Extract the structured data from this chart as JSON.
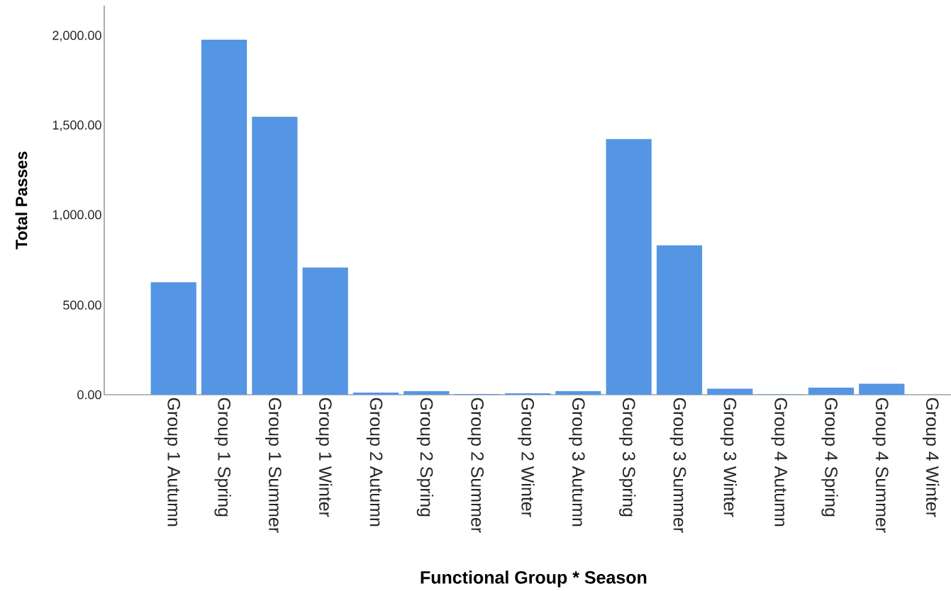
{
  "chart_data": {
    "type": "bar",
    "xlabel": "Functional  Group * Season",
    "ylabel": "Total Passes",
    "categories": [
      "Group 1 Autumn",
      "Group 1 Spring",
      "Group 1 Summer",
      "Group 1 Winter",
      "Group 2 Autumn",
      "Group 2 Spring",
      "Group 2 Summer",
      "Group 2 Winter",
      "Group 3 Autumn",
      "Group 3 Spring",
      "Group 3 Summer",
      "Group 3 Winter",
      "Group 4 Autumn",
      "Group 4 Spring",
      "Group 4 Summer",
      "Group 4 Winter"
    ],
    "values": [
      627,
      1980,
      1550,
      709,
      12,
      20,
      4,
      8,
      20,
      1426,
      833,
      34,
      2,
      40,
      61,
      0
    ],
    "color": "#5596e4",
    "ylim": [
      0,
      2170
    ],
    "yticks": [
      {
        "value": 0,
        "label": "0.00"
      },
      {
        "value": 500,
        "label": "500.00"
      },
      {
        "value": 1000,
        "label": "1,000.00"
      },
      {
        "value": 1500,
        "label": "1,500.00"
      },
      {
        "value": 2000,
        "label": "2,000.00"
      }
    ],
    "grid": false
  }
}
